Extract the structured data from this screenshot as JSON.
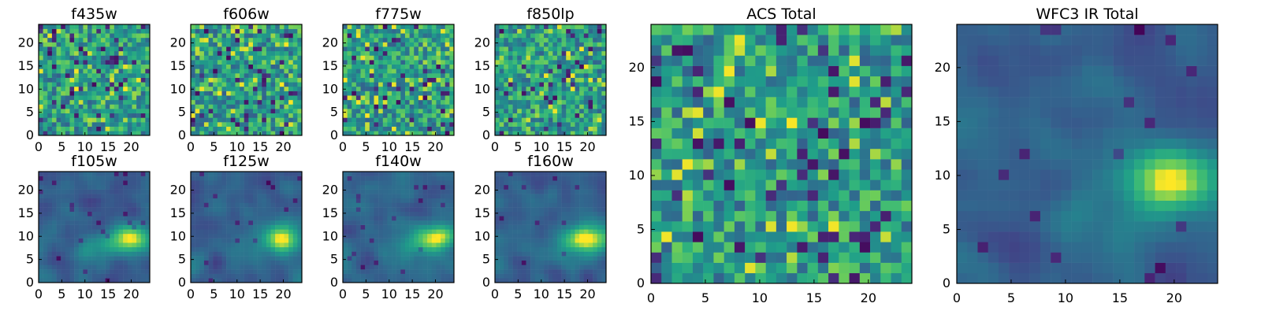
{
  "chart_data": [
    {
      "type": "heatmap",
      "title": "f435w",
      "x_ticks": [
        0,
        5,
        10,
        15,
        20
      ],
      "y_ticks": [
        0,
        5,
        10,
        15,
        20
      ],
      "xlim": [
        0,
        24
      ],
      "ylim": [
        0,
        24
      ],
      "grid_size": 25,
      "seed": 11,
      "pattern": "noisy",
      "palette": "viridis"
    },
    {
      "type": "heatmap",
      "title": "f606w",
      "x_ticks": [
        0,
        5,
        10,
        15,
        20
      ],
      "y_ticks": [
        0,
        5,
        10,
        15,
        20
      ],
      "xlim": [
        0,
        24
      ],
      "ylim": [
        0,
        24
      ],
      "grid_size": 25,
      "seed": 22,
      "pattern": "noisy",
      "palette": "viridis"
    },
    {
      "type": "heatmap",
      "title": "f775w",
      "x_ticks": [
        0,
        5,
        10,
        15,
        20
      ],
      "y_ticks": [
        0,
        5,
        10,
        15,
        20
      ],
      "xlim": [
        0,
        24
      ],
      "ylim": [
        0,
        24
      ],
      "grid_size": 25,
      "seed": 33,
      "pattern": "noisy",
      "palette": "viridis"
    },
    {
      "type": "heatmap",
      "title": "f850lp",
      "x_ticks": [
        0,
        5,
        10,
        15,
        20
      ],
      "y_ticks": [
        0,
        5,
        10,
        15,
        20
      ],
      "xlim": [
        0,
        24
      ],
      "ylim": [
        0,
        24
      ],
      "grid_size": 25,
      "seed": 44,
      "pattern": "noisy",
      "palette": "viridis"
    },
    {
      "type": "heatmap",
      "title": "f105w",
      "x_ticks": [
        0,
        5,
        10,
        15,
        20
      ],
      "y_ticks": [
        0,
        5,
        10,
        15,
        20
      ],
      "xlim": [
        0,
        24
      ],
      "ylim": [
        0,
        24
      ],
      "grid_size": 25,
      "seed": 55,
      "pattern": "smooth",
      "palette": "viridis"
    },
    {
      "type": "heatmap",
      "title": "f125w",
      "x_ticks": [
        0,
        5,
        10,
        15,
        20
      ],
      "y_ticks": [
        0,
        5,
        10,
        15,
        20
      ],
      "xlim": [
        0,
        24
      ],
      "ylim": [
        0,
        24
      ],
      "grid_size": 25,
      "seed": 66,
      "pattern": "smooth",
      "palette": "viridis"
    },
    {
      "type": "heatmap",
      "title": "f140w",
      "x_ticks": [
        0,
        5,
        10,
        15,
        20
      ],
      "y_ticks": [
        0,
        5,
        10,
        15,
        20
      ],
      "xlim": [
        0,
        24
      ],
      "ylim": [
        0,
        24
      ],
      "grid_size": 25,
      "seed": 77,
      "pattern": "smooth",
      "palette": "viridis"
    },
    {
      "type": "heatmap",
      "title": "f160w",
      "x_ticks": [
        0,
        5,
        10,
        15,
        20
      ],
      "y_ticks": [
        0,
        5,
        10,
        15,
        20
      ],
      "xlim": [
        0,
        24
      ],
      "ylim": [
        0,
        24
      ],
      "grid_size": 25,
      "seed": 88,
      "pattern": "smooth",
      "palette": "viridis"
    },
    {
      "type": "heatmap",
      "title": "ACS Total",
      "x_ticks": [
        0,
        5,
        10,
        15,
        20
      ],
      "y_ticks": [
        0,
        5,
        10,
        15,
        20
      ],
      "xlim": [
        0,
        24
      ],
      "ylim": [
        0,
        24
      ],
      "grid_size": 25,
      "seed": 99,
      "pattern": "noisy",
      "palette": "viridis"
    },
    {
      "type": "heatmap",
      "title": "WFC3 IR Total",
      "x_ticks": [
        0,
        5,
        10,
        15,
        20
      ],
      "y_ticks": [
        0,
        5,
        10,
        15,
        20
      ],
      "xlim": [
        0,
        24
      ],
      "ylim": [
        0,
        24
      ],
      "grid_size": 25,
      "seed": 111,
      "pattern": "smooth",
      "palette": "viridis"
    }
  ]
}
